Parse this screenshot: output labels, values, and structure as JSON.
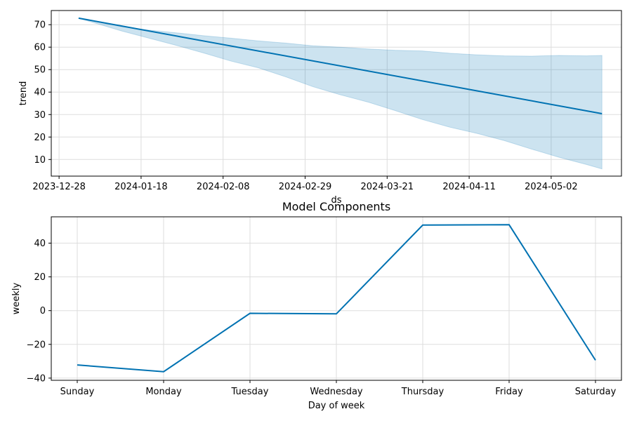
{
  "colors": {
    "line": "#0072B2",
    "band": "#0072B2"
  },
  "chart_data": [
    {
      "type": "line",
      "title": "",
      "xlabel": "ds",
      "ylabel": "trend",
      "grid": true,
      "x_is_date": true,
      "xlim": [
        "2023-12-26",
        "2024-05-20"
      ],
      "ylim": [
        2.6,
        76.3
      ],
      "x_ticks": [
        "2023-12-28",
        "2024-01-18",
        "2024-02-08",
        "2024-02-29",
        "2024-03-21",
        "2024-04-11",
        "2024-05-02"
      ],
      "y_ticks": [
        10,
        20,
        30,
        40,
        50,
        60,
        70
      ],
      "series": [
        {
          "x": [
            "2024-01-02",
            "2024-05-15"
          ],
          "y": [
            72.9,
            30.4
          ]
        }
      ],
      "uncertainty_band": {
        "x": [
          "2024-01-02",
          "2024-01-13",
          "2024-01-20",
          "2024-01-27",
          "2024-02-03",
          "2024-02-10",
          "2024-02-17",
          "2024-02-24",
          "2024-03-02",
          "2024-03-09",
          "2024-03-16",
          "2024-03-23",
          "2024-03-30",
          "2024-04-06",
          "2024-04-13",
          "2024-04-20",
          "2024-04-27",
          "2024-05-04",
          "2024-05-11",
          "2024-05-15"
        ],
        "upper": [
          72.9,
          69.1,
          67.6,
          66.4,
          65.1,
          64.0,
          62.8,
          61.8,
          60.6,
          60.0,
          59.2,
          58.6,
          58.3,
          57.3,
          56.6,
          56.1,
          56.0,
          56.3,
          56.1,
          56.3
        ],
        "lower": [
          72.9,
          67.2,
          64.0,
          60.8,
          57.4,
          53.8,
          50.8,
          46.8,
          42.4,
          38.8,
          35.6,
          31.8,
          27.8,
          24.4,
          21.6,
          18.4,
          14.6,
          11.0,
          7.8,
          5.8
        ]
      }
    },
    {
      "type": "line",
      "title": "Model Components",
      "xlabel": "Day of week",
      "ylabel": "weekly",
      "grid": true,
      "ylim": [
        -41.3,
        55.6
      ],
      "y_ticks": [
        -40,
        -20,
        0,
        20,
        40
      ],
      "y_tick_labels": [
        "−40",
        "−20",
        "0",
        "20",
        "40"
      ],
      "categories": [
        "Sunday",
        "Monday",
        "Tuesday",
        "Wednesday",
        "Thursday",
        "Friday",
        "Saturday"
      ],
      "series": [
        {
          "values": [
            -32.2,
            -36.2,
            -1.6,
            -1.9,
            50.7,
            50.9,
            -29.4
          ]
        }
      ]
    }
  ]
}
